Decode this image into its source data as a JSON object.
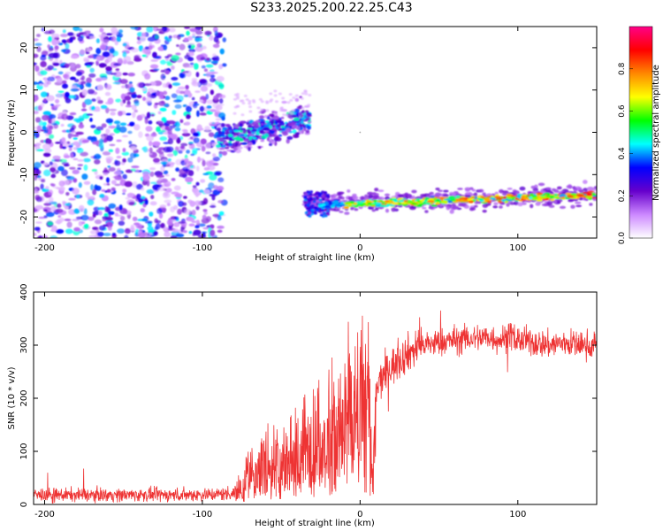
{
  "page_title": "S233.2025.200.22.25.C43",
  "chart_data": [
    {
      "type": "heatmap",
      "xlabel": "Height of straight line (km)",
      "ylabel": "Frequency (Hz)",
      "xlim": [
        -207,
        150
      ],
      "ylim": [
        -25,
        25
      ],
      "x_ticks": [
        -200,
        -100,
        0,
        100
      ],
      "y_ticks": [
        -20,
        -10,
        0,
        10,
        20
      ],
      "colorbar": {
        "label": "Normalized spectral amplitude",
        "ticks": [
          "0.0",
          "0.2",
          "0.4",
          "0.6",
          "0.8"
        ],
        "range": [
          0,
          1
        ],
        "colors": [
          "#ffffff",
          "#cc88ff",
          "#6600cc",
          "#0000ff",
          "#00ffff",
          "#00ff00",
          "#ffff00",
          "#ff8800",
          "#ff0000",
          "#ff0088"
        ]
      },
      "regions": [
        {
          "name": "noise",
          "x": [
            -207,
            -86
          ],
          "freq": [
            -25,
            25
          ],
          "amplitude": 0.2
        },
        {
          "name": "rising-track",
          "x": [
            -90,
            -32
          ],
          "freq": [
            -5,
            8
          ],
          "amplitude": 0.35
        },
        {
          "name": "tone-track",
          "x": [
            -35,
            150
          ],
          "freq": [
            -20,
            -14
          ],
          "amplitude": 0.9
        }
      ]
    },
    {
      "type": "line",
      "xlabel": "Height of straight line (km)",
      "ylabel": "SNR (10 * v/v)",
      "xlim": [
        -207,
        150
      ],
      "ylim": [
        0,
        400
      ],
      "x_ticks": [
        -200,
        -100,
        0,
        100
      ],
      "y_ticks": [
        0,
        100,
        200,
        300,
        400
      ],
      "color": "#ee3333",
      "series": [
        {
          "x": [
            -207,
            -180,
            -150,
            -120,
            -90,
            -80,
            -75,
            -70,
            -60,
            -50,
            -40,
            -30,
            -20,
            -10,
            0,
            5,
            8,
            10,
            12,
            20,
            30,
            40,
            50,
            60,
            80,
            90,
            95,
            100,
            110,
            120,
            130,
            140,
            150
          ],
          "y": [
            18,
            18,
            18,
            18,
            19,
            22,
            40,
            70,
            95,
            85,
            110,
            130,
            160,
            175,
            200,
            225,
            25,
            205,
            230,
            260,
            285,
            300,
            305,
            310,
            315,
            310,
            320,
            310,
            305,
            300,
            305,
            300,
            300
          ]
        }
      ]
    }
  ]
}
